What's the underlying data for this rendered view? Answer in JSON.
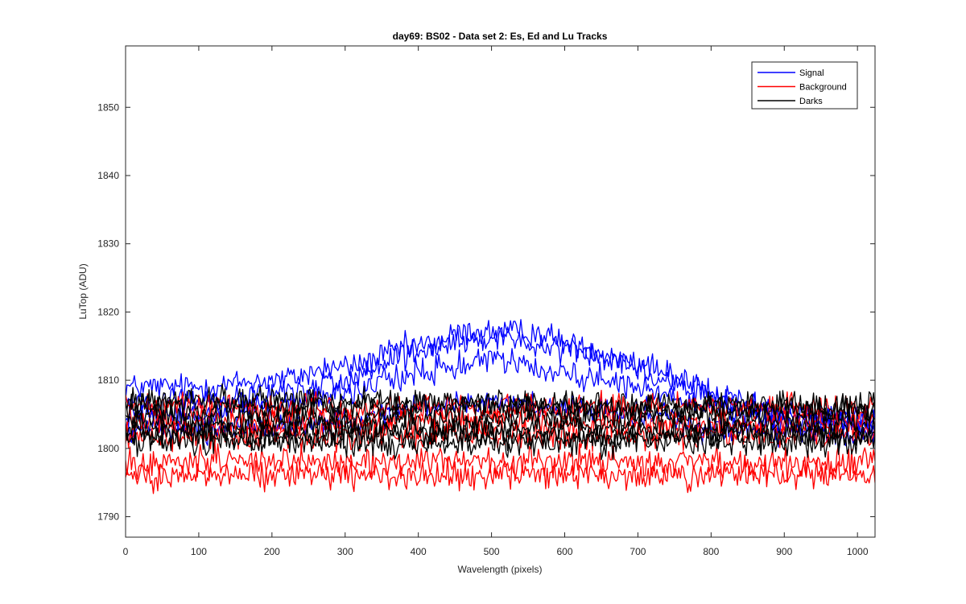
{
  "chart_data": {
    "type": "line",
    "title": "day69: BS02 - Data set 2: Es, Ed and Lu Tracks",
    "xlabel": "Wavelength (pixels)",
    "ylabel": "LuTop (ADU)",
    "xlim": [
      0,
      1024
    ],
    "ylim": [
      1787,
      1859
    ],
    "xticks": [
      0,
      100,
      200,
      300,
      400,
      500,
      600,
      700,
      800,
      900,
      1000
    ],
    "yticks": [
      1790,
      1800,
      1810,
      1820,
      1830,
      1840,
      1850
    ],
    "grid": false,
    "legend_position": "top-right",
    "legend": [
      {
        "name": "Signal",
        "color": "#0000ff"
      },
      {
        "name": "Background",
        "color": "#ff0000"
      },
      {
        "name": "Darks",
        "color": "#000000"
      }
    ],
    "series_groups": [
      {
        "name": "Signal",
        "color": "#0000ff",
        "noise_amplitude": 1.4,
        "tracks": [
          {
            "peak_x": 470,
            "profile": [
              [
                0,
                1809
              ],
              [
                100,
                1809
              ],
              [
                200,
                1810
              ],
              [
                300,
                1812
              ],
              [
                400,
                1815
              ],
              [
                470,
                1817
              ],
              [
                550,
                1817
              ],
              [
                650,
                1814
              ],
              [
                750,
                1810
              ],
              [
                850,
                1806
              ],
              [
                1000,
                1804
              ],
              [
                1024,
                1804
              ]
            ]
          },
          {
            "peak_x": 510,
            "profile": [
              [
                0,
                1807
              ],
              [
                100,
                1807
              ],
              [
                200,
                1808
              ],
              [
                300,
                1810
              ],
              [
                400,
                1814
              ],
              [
                500,
                1816
              ],
              [
                600,
                1815
              ],
              [
                700,
                1812
              ],
              [
                800,
                1808
              ],
              [
                900,
                1805
              ],
              [
                1024,
                1804
              ]
            ]
          },
          {
            "peak_x": 500,
            "profile": [
              [
                0,
                1805
              ],
              [
                100,
                1805
              ],
              [
                200,
                1806
              ],
              [
                300,
                1808
              ],
              [
                400,
                1811
              ],
              [
                500,
                1813
              ],
              [
                600,
                1811
              ],
              [
                700,
                1809
              ],
              [
                800,
                1806
              ],
              [
                900,
                1804
              ],
              [
                1024,
                1803
              ]
            ]
          },
          {
            "peak_x": 500,
            "profile": [
              [
                0,
                1803
              ],
              [
                200,
                1803
              ],
              [
                300,
                1804
              ],
              [
                400,
                1806
              ],
              [
                500,
                1807
              ],
              [
                600,
                1806
              ],
              [
                700,
                1805
              ],
              [
                800,
                1803
              ],
              [
                1024,
                1802
              ]
            ]
          }
        ]
      },
      {
        "name": "Background",
        "color": "#ff0000",
        "noise_amplitude": 1.5,
        "tracks": [
          {
            "profile": [
              [
                0,
                1796
              ],
              [
                300,
                1796
              ],
              [
                600,
                1796
              ],
              [
                1024,
                1796
              ]
            ]
          },
          {
            "profile": [
              [
                0,
                1798
              ],
              [
                300,
                1798
              ],
              [
                600,
                1798
              ],
              [
                1024,
                1798
              ]
            ]
          },
          {
            "profile": [
              [
                0,
                1802
              ],
              [
                500,
                1802
              ],
              [
                1024,
                1802
              ]
            ]
          },
          {
            "profile": [
              [
                0,
                1804
              ],
              [
                500,
                1804
              ],
              [
                1024,
                1804
              ]
            ]
          },
          {
            "profile": [
              [
                0,
                1806
              ],
              [
                500,
                1806
              ],
              [
                1024,
                1806
              ]
            ]
          }
        ]
      },
      {
        "name": "Darks",
        "color": "#000000",
        "noise_amplitude": 1.5,
        "tracks": [
          {
            "profile": [
              [
                0,
                1801
              ],
              [
                1024,
                1801
              ]
            ]
          },
          {
            "profile": [
              [
                0,
                1803
              ],
              [
                1024,
                1803
              ]
            ]
          },
          {
            "profile": [
              [
                0,
                1804.5
              ],
              [
                1024,
                1804.5
              ]
            ]
          },
          {
            "profile": [
              [
                0,
                1806
              ],
              [
                1024,
                1806
              ]
            ]
          },
          {
            "profile": [
              [
                0,
                1802
              ],
              [
                1024,
                1802
              ]
            ]
          },
          {
            "profile": [
              [
                0,
                1807
              ],
              [
                1024,
                1806
              ]
            ]
          }
        ]
      }
    ]
  }
}
